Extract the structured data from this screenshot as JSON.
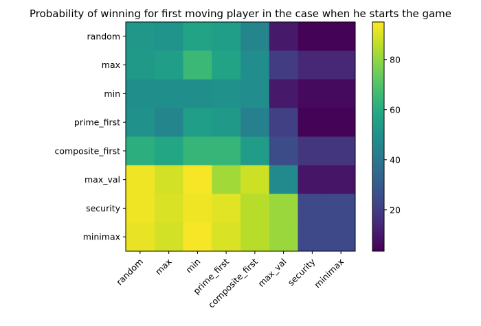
{
  "chart_data": {
    "type": "heatmap",
    "title": "Probability of winning for first moving player in the case when he starts the game",
    "xlabel": "",
    "ylabel": "",
    "x_categories": [
      "random",
      "max",
      "min",
      "prime_first",
      "composite_first",
      "max_val",
      "security",
      "minimax"
    ],
    "y_categories": [
      "random",
      "max",
      "min",
      "prime_first",
      "composite_first",
      "max_val",
      "security",
      "minimax"
    ],
    "values": [
      [
        52,
        51,
        57,
        55,
        45,
        10,
        4,
        4
      ],
      [
        53,
        55,
        65,
        57,
        48,
        20,
        14,
        14
      ],
      [
        49,
        49,
        49,
        50,
        48,
        10,
        6,
        6
      ],
      [
        50,
        45,
        55,
        53,
        43,
        21,
        4,
        4
      ],
      [
        61,
        58,
        64,
        64,
        54,
        25,
        18,
        18
      ],
      [
        93,
        89,
        94,
        82,
        88,
        47,
        9,
        9
      ],
      [
        93,
        90,
        93,
        91,
        85,
        81,
        24,
        24
      ],
      [
        92,
        89,
        94,
        90,
        85,
        81,
        24,
        24
      ]
    ],
    "colormap": "viridis",
    "colorbar": {
      "range": [
        3.5,
        95
      ],
      "ticks": [
        20,
        40,
        60,
        80
      ],
      "tick_labels": [
        "20",
        "40",
        "60",
        "80"
      ]
    }
  }
}
